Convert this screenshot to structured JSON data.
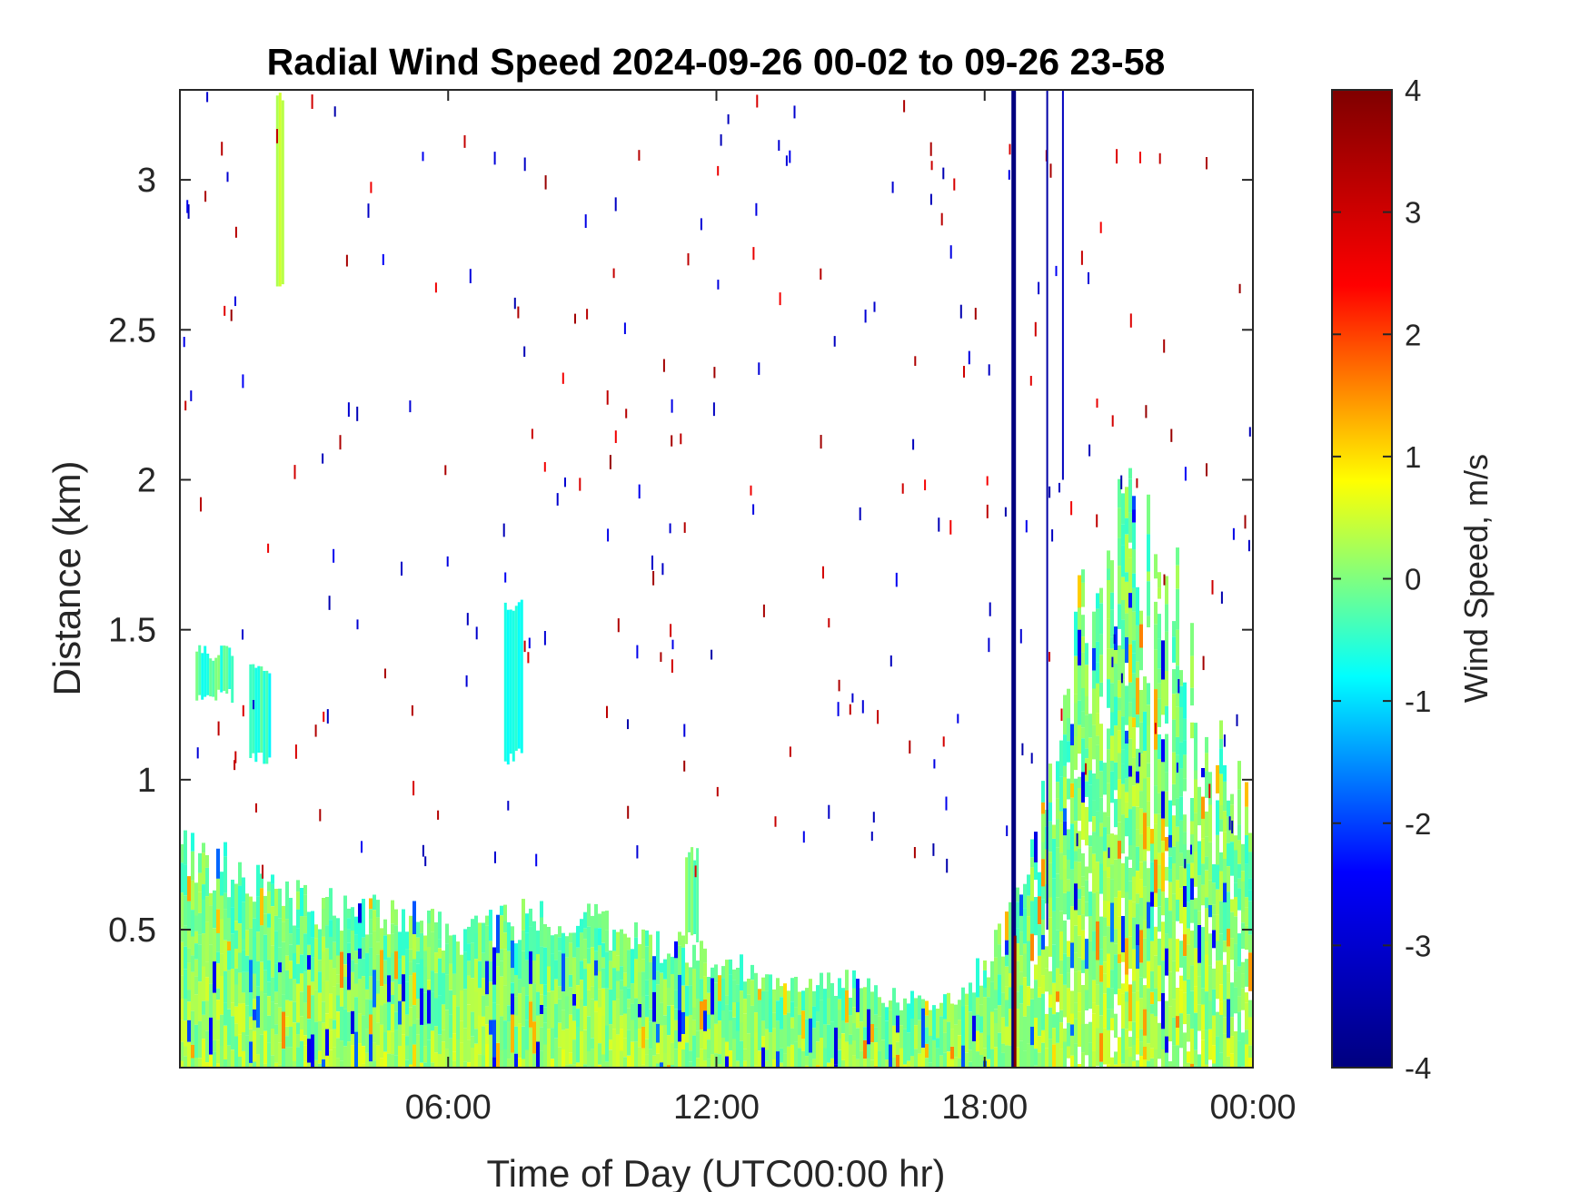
{
  "chart_data": {
    "type": "heatmap",
    "title": "Radial Wind Speed 2024-09-26 00-02 to 09-26 23-58",
    "xlabel": "Time of Day (UTC00:00 hr)",
    "ylabel": "Distance (km)",
    "x_unit": "hours",
    "xlim": [
      0,
      24
    ],
    "ylim": [
      0.04,
      3.3
    ],
    "x_ticks": [
      {
        "value": 6,
        "label": "06:00"
      },
      {
        "value": 12,
        "label": "12:00"
      },
      {
        "value": 18,
        "label": "18:00"
      },
      {
        "value": 24,
        "label": "00:00"
      }
    ],
    "y_ticks": [
      {
        "value": 0.5,
        "label": "0.5"
      },
      {
        "value": 1,
        "label": "1"
      },
      {
        "value": 1.5,
        "label": "1.5"
      },
      {
        "value": 2,
        "label": "2"
      },
      {
        "value": 2.5,
        "label": "2.5"
      },
      {
        "value": 3,
        "label": "3"
      }
    ],
    "colorbar": {
      "label": "Wind Speed, m/s",
      "range": [
        -4,
        4
      ],
      "ticks": [
        {
          "value": 4,
          "label": "4"
        },
        {
          "value": 3,
          "label": "3"
        },
        {
          "value": 2,
          "label": "2"
        },
        {
          "value": 1,
          "label": "1"
        },
        {
          "value": 0,
          "label": "0"
        },
        {
          "value": -1,
          "label": "-1"
        },
        {
          "value": -2,
          "label": "-2"
        },
        {
          "value": -3,
          "label": "-3"
        },
        {
          "value": -4,
          "label": "-4"
        }
      ],
      "colormap": "jet",
      "colors": [
        "#00007f",
        "#0000ff",
        "#00ffff",
        "#ffff00",
        "#ff0000",
        "#7f0000"
      ]
    },
    "mixing_layer_top_km": [
      [
        0,
        0.75
      ],
      [
        1,
        0.72
      ],
      [
        2,
        0.62
      ],
      [
        3,
        0.57
      ],
      [
        4,
        0.55
      ],
      [
        5,
        0.53
      ],
      [
        6,
        0.48
      ],
      [
        7,
        0.5
      ],
      [
        8,
        0.55
      ],
      [
        9,
        0.52
      ],
      [
        10,
        0.48
      ],
      [
        11,
        0.44
      ],
      [
        12,
        0.38
      ],
      [
        13,
        0.35
      ],
      [
        14,
        0.34
      ],
      [
        15,
        0.32
      ],
      [
        16,
        0.27
      ],
      [
        17,
        0.24
      ],
      [
        18,
        0.38
      ],
      [
        19,
        0.65
      ],
      [
        20,
        1.5
      ],
      [
        21,
        1.9
      ],
      [
        22,
        1.7
      ],
      [
        23,
        1.2
      ],
      [
        24,
        0.9
      ]
    ],
    "elevated_layers": [
      {
        "x": [
          0.35,
          1.2
        ],
        "y": [
          1.25,
          1.45
        ],
        "speed": -0.3
      },
      {
        "x": [
          1.55,
          2.0
        ],
        "y": [
          1.05,
          1.4
        ],
        "speed": -0.5
      },
      {
        "x": [
          7.25,
          7.65
        ],
        "y": [
          1.05,
          1.6
        ],
        "speed": -0.5
      },
      {
        "x": [
          11.3,
          11.6
        ],
        "y": [
          0.45,
          0.78
        ],
        "speed": -0.2
      },
      {
        "x": [
          2.15,
          2.3
        ],
        "y": [
          2.6,
          3.3
        ],
        "speed": 0.2
      }
    ],
    "vertical_features": [
      {
        "x": 18.65,
        "speed": -4,
        "y": [
          0.04,
          3.3
        ]
      },
      {
        "x": 18.68,
        "speed": 4,
        "y": [
          0.04,
          0.48
        ]
      },
      {
        "x": 19.4,
        "speed": -3.5,
        "y": [
          0.5,
          3.3
        ]
      },
      {
        "x": 19.75,
        "speed": -3.2,
        "y": [
          2.0,
          3.3
        ]
      }
    ]
  }
}
